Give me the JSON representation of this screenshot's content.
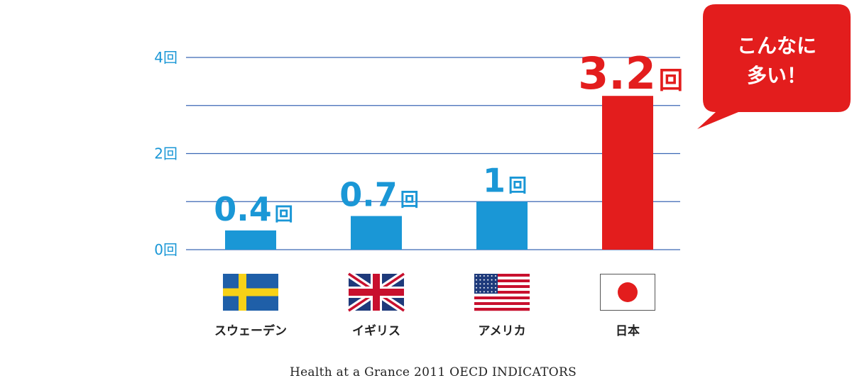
{
  "chart_data": {
    "type": "bar",
    "categories": [
      "スウェーデン",
      "イギリス",
      "アメリカ",
      "日本"
    ],
    "values": [
      0.4,
      0.7,
      1,
      3.2
    ],
    "value_labels": [
      "0.4",
      "0.7",
      "1",
      "3.2"
    ],
    "value_unit": "回",
    "ylim": [
      0,
      4
    ],
    "yticks": [
      {
        "value": 0,
        "label": "0回"
      },
      {
        "value": 2,
        "label": "2回"
      },
      {
        "value": 4,
        "label": "4回"
      }
    ],
    "gridlines": [
      0,
      1,
      2,
      3,
      4
    ],
    "highlight_index": 3,
    "callout": [
      "こんなに",
      "多い！"
    ],
    "source": "Health at a Grance 2011 OECD INDICATORS",
    "flags": [
      "sweden-flag",
      "uk-flag",
      "usa-flag",
      "japan-flag"
    ],
    "colors": {
      "bar": "#1a97d6",
      "highlight": "#e31d1d",
      "grid": "#3b67b5",
      "tick": "#1a97d6",
      "text": "#222222"
    }
  }
}
